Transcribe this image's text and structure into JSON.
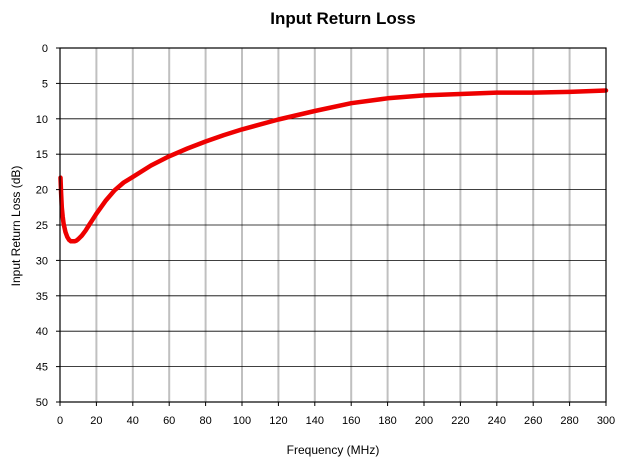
{
  "chart_data": {
    "type": "line",
    "title": "Input Return Loss",
    "xlabel": "Frequency (MHz)",
    "ylabel": "Input Return Loss (dB)",
    "xlim": [
      0,
      300
    ],
    "ylim": [
      0,
      50
    ],
    "y_inverted": true,
    "x_ticks": [
      0,
      20,
      40,
      60,
      80,
      100,
      120,
      140,
      160,
      180,
      200,
      220,
      240,
      260,
      280,
      300
    ],
    "y_ticks": [
      0,
      5,
      10,
      15,
      20,
      25,
      30,
      35,
      40,
      45,
      50
    ],
    "grid": {
      "vertical": true,
      "horizontal": true
    },
    "legend": "none",
    "series": [
      {
        "color": "#ee0000",
        "x": [
          0.3,
          0.6,
          1,
          1.5,
          2,
          3,
          4,
          5,
          6,
          7,
          8,
          9,
          10,
          12,
          14,
          16,
          18,
          20,
          25,
          30,
          35,
          40,
          50,
          60,
          70,
          80,
          90,
          100,
          120,
          140,
          160,
          180,
          200,
          220,
          240,
          260,
          280,
          300
        ],
        "y": [
          18.3,
          20.5,
          22.5,
          23.8,
          24.8,
          26.0,
          26.7,
          27.1,
          27.3,
          27.3,
          27.3,
          27.2,
          27.0,
          26.5,
          25.8,
          25.0,
          24.2,
          23.4,
          21.6,
          20.1,
          19.0,
          18.2,
          16.6,
          15.3,
          14.2,
          13.2,
          12.3,
          11.5,
          10.1,
          8.9,
          7.8,
          7.1,
          6.7,
          6.5,
          6.3,
          6.3,
          6.2,
          6.0
        ]
      }
    ]
  }
}
